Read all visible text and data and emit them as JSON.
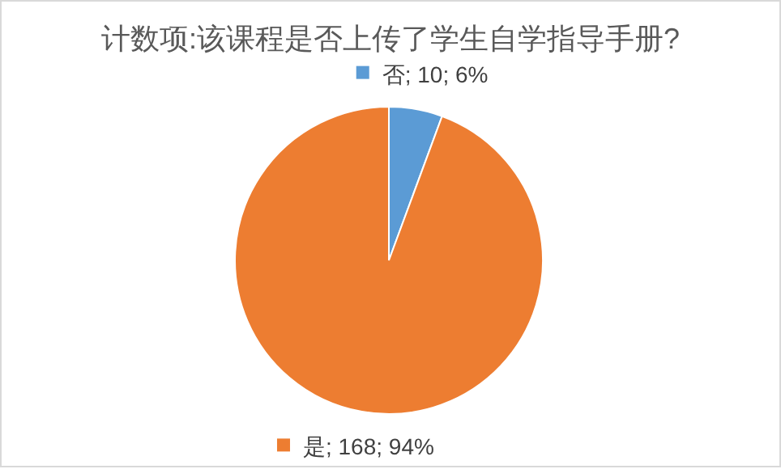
{
  "chart_data": {
    "type": "pie",
    "title": "计数项:该课程是否上传了学生自学指导手册?",
    "categories": [
      "否",
      "是"
    ],
    "values": [
      10,
      168
    ],
    "colors": [
      "#5b9bd5",
      "#ed7d31"
    ],
    "value_labels": [
      "; 10; 6%",
      "; 168; 94%"
    ],
    "legend": "bottom left"
  }
}
